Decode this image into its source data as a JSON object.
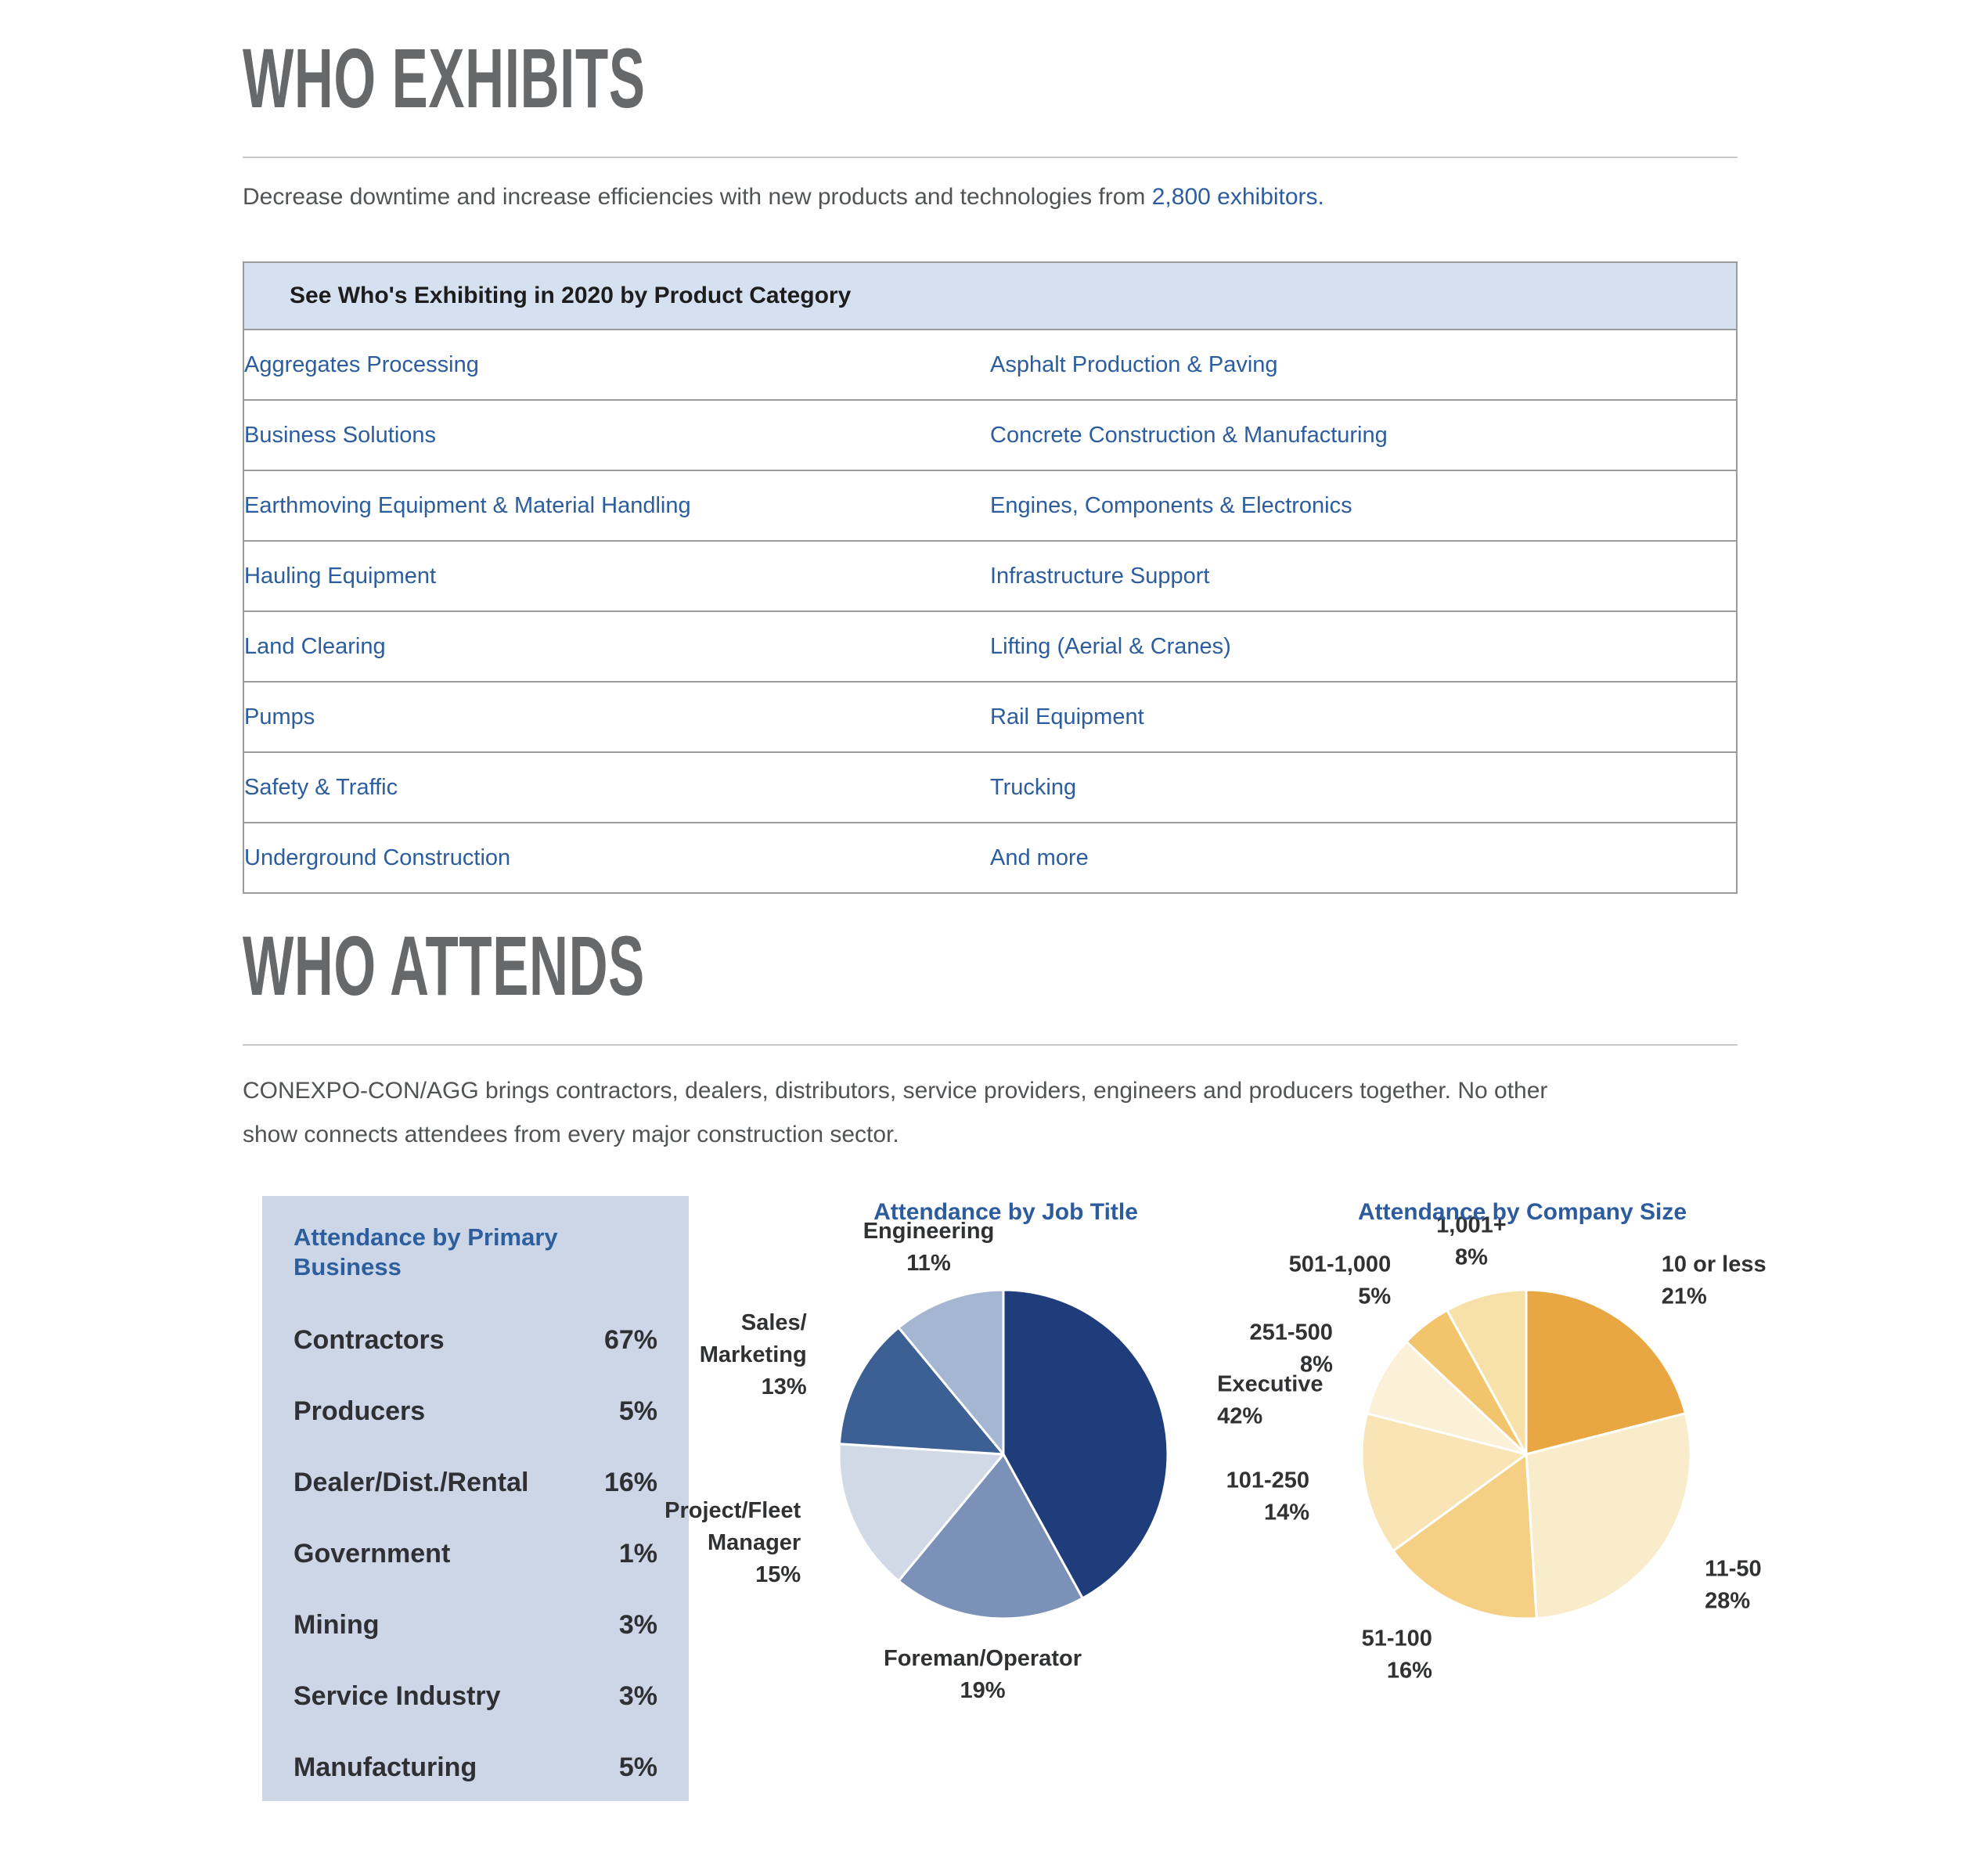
{
  "who_exhibits": {
    "heading": "WHO EXHIBITS",
    "intro_prefix": "Decrease downtime and increase efficiencies with new products and technologies from ",
    "intro_link": "2,800 exhibitors.",
    "table": {
      "header": "See Who's Exhibiting in 2020 by Product Category",
      "rows": [
        [
          "Aggregates Processing",
          "Asphalt Production & Paving"
        ],
        [
          "Business Solutions",
          "Concrete Construction & Manufacturing"
        ],
        [
          "Earthmoving Equipment & Material Handling",
          "Engines, Components & Electronics"
        ],
        [
          "Hauling Equipment",
          "Infrastructure Support"
        ],
        [
          "Land Clearing",
          "Lifting (Aerial & Cranes)"
        ],
        [
          "Pumps",
          "Rail Equipment"
        ],
        [
          "Safety & Traffic",
          "Trucking"
        ],
        [
          "Underground Construction",
          "And more"
        ]
      ]
    }
  },
  "who_attends": {
    "heading": "WHO ATTENDS",
    "intro_line1": "CONEXPO-CON/AGG brings contractors, dealers, distributors, service providers, engineers and producers together. No other",
    "intro_line2": "show connects attendees from every major construction sector."
  },
  "chart_data": [
    {
      "type": "table",
      "title": "Attendance by Primary Business",
      "categories": [
        "Contractors",
        "Producers",
        "Dealer/Dist./Rental",
        "Government",
        "Mining",
        "Service Industry",
        "Manufacturing"
      ],
      "values": [
        67,
        5,
        16,
        1,
        3,
        3,
        5
      ],
      "value_labels": [
        "67%",
        "5%",
        "16%",
        "1%",
        "3%",
        "3%",
        "5%"
      ]
    },
    {
      "type": "pie",
      "title": "Attendance by Job Title",
      "start_angle_deg": 0,
      "direction": "clockwise",
      "slices": [
        {
          "label_lines": [
            "Executive"
          ],
          "pct_label": "42%",
          "value": 42,
          "color": "#1f3d7a"
        },
        {
          "label_lines": [
            "Foreman/Operator"
          ],
          "pct_label": "19%",
          "value": 19,
          "color": "#7b91b7"
        },
        {
          "label_lines": [
            "Project/Fleet",
            "Manager"
          ],
          "pct_label": "15%",
          "value": 15,
          "color": "#d2d9e6"
        },
        {
          "label_lines": [
            "Sales/",
            "Marketing"
          ],
          "pct_label": "13%",
          "value": 13,
          "color": "#3c5f94"
        },
        {
          "label_lines": [
            "Engineering"
          ],
          "pct_label": "11%",
          "value": 11,
          "color": "#a4b6d2"
        }
      ]
    },
    {
      "type": "pie",
      "title": "Attendance by Company Size",
      "start_angle_deg": 0,
      "direction": "clockwise",
      "slices": [
        {
          "label_lines": [
            "10 or less"
          ],
          "pct_label": "21%",
          "value": 21,
          "color": "#e9a743"
        },
        {
          "label_lines": [
            "11-50"
          ],
          "pct_label": "28%",
          "value": 28,
          "color": "#f9ecca"
        },
        {
          "label_lines": [
            "51-100"
          ],
          "pct_label": "16%",
          "value": 16,
          "color": "#f5d084"
        },
        {
          "label_lines": [
            "101-250"
          ],
          "pct_label": "14%",
          "value": 14,
          "color": "#f8e4b4"
        },
        {
          "label_lines": [
            "251-500"
          ],
          "pct_label": "8%",
          "value": 8,
          "color": "#fbf0d8"
        },
        {
          "label_lines": [
            "501-1,000"
          ],
          "pct_label": "5%",
          "value": 5,
          "color": "#f2c56d"
        },
        {
          "label_lines": [
            "1,001+"
          ],
          "pct_label": "8%",
          "value": 8,
          "color": "#f7e1a8"
        }
      ]
    }
  ],
  "colors": {
    "heading": "#67686a",
    "link": "#2c5d9e",
    "body_text": "#515457",
    "table_header_bg": "#d5e0f1",
    "table_border": "#9b9b9b",
    "panel_bg": "#ccd6e7",
    "chart_title": "#2d5c9e",
    "chart_label": "#2f3133",
    "rule": "#c9c9c9"
  }
}
